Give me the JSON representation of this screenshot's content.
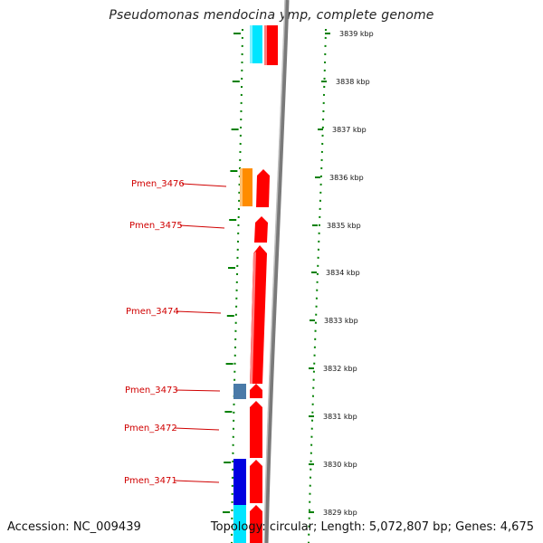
{
  "title": "Pseudomonas mendocina ymp, complete genome",
  "footer": {
    "accession": "Accession: NC_009439",
    "topology": "Topology: circular; Length: 5,072,807 bp; Genes: 4,675"
  },
  "colors": {
    "forward_cds": "#ff0000",
    "reverse_cds_cyan": "#00e5ff",
    "orange_feature": "#ff8c00",
    "steelblue_feature": "#4a7aa8",
    "blue_feature": "#0000e0",
    "backbone": "#808080",
    "tick_marks": "#008000",
    "label_text": "#d00000"
  },
  "axis": {
    "unit": "kbp",
    "ticks": [
      {
        "label": "3839 kbp"
      },
      {
        "label": "3838 kbp"
      },
      {
        "label": "3837 kbp"
      },
      {
        "label": "3836 kbp"
      },
      {
        "label": "3835 kbp"
      },
      {
        "label": "3834 kbp"
      },
      {
        "label": "3833 kbp"
      },
      {
        "label": "3832 kbp"
      },
      {
        "label": "3831 kbp"
      },
      {
        "label": "3830 kbp"
      },
      {
        "label": "3829 kbp"
      }
    ]
  },
  "gene_labels": [
    {
      "label": "Pmen_3476"
    },
    {
      "label": "Pmen_3475"
    },
    {
      "label": "Pmen_3474"
    },
    {
      "label": "Pmen_3473"
    },
    {
      "label": "Pmen_3472"
    },
    {
      "label": "Pmen_3471"
    }
  ]
}
